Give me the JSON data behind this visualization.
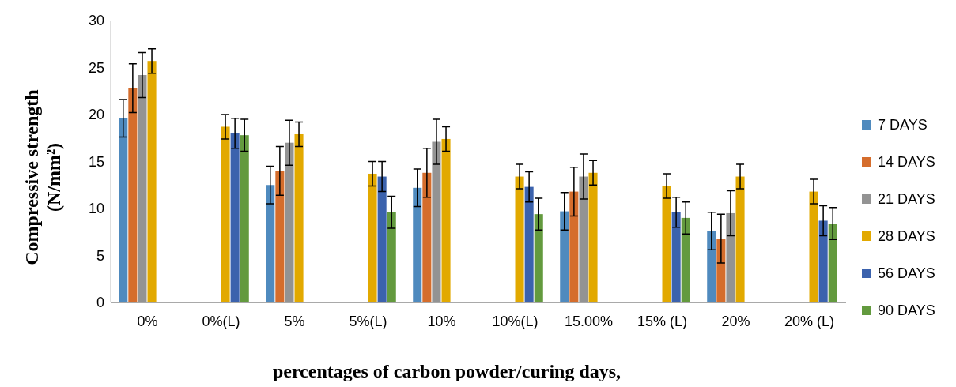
{
  "chart_data": {
    "type": "bar",
    "xlabel": "percentages of carbon powder/curing days,",
    "ylabel": "Compressive strength (N/mm²)",
    "categories": [
      "0%",
      "0%(L)",
      "5%",
      "5%(L)",
      "10%",
      "10%(L)",
      "15.00%",
      "15% (L)",
      "20%",
      "20% (L)"
    ],
    "ylim": [
      0,
      30
    ],
    "yticks": [
      0,
      5,
      10,
      15,
      20,
      25,
      30
    ],
    "grid": false,
    "legend": "right",
    "series": [
      {
        "name": "7 DAYS",
        "color": "#4f8abe",
        "values": [
          19.6,
          null,
          12.5,
          null,
          12.2,
          null,
          9.7,
          null,
          7.6,
          null
        ],
        "errors": [
          2.0,
          null,
          2.0,
          null,
          2.0,
          null,
          2.0,
          null,
          2.0,
          null
        ]
      },
      {
        "name": "14 DAYS",
        "color": "#d56d2c",
        "values": [
          22.8,
          null,
          14.0,
          null,
          13.8,
          null,
          11.8,
          null,
          6.8,
          null
        ],
        "errors": [
          2.6,
          null,
          2.6,
          null,
          2.6,
          null,
          2.6,
          null,
          2.6,
          null
        ]
      },
      {
        "name": "21 DAYS",
        "color": "#939393",
        "values": [
          24.2,
          null,
          17.0,
          null,
          17.1,
          null,
          13.4,
          null,
          9.5,
          null
        ],
        "errors": [
          2.4,
          null,
          2.4,
          null,
          2.4,
          null,
          2.4,
          null,
          2.4,
          null
        ]
      },
      {
        "name": "28 DAYS",
        "color": "#e2a900",
        "values": [
          25.7,
          18.7,
          17.9,
          13.7,
          17.4,
          13.4,
          13.8,
          12.4,
          13.4,
          11.8
        ],
        "errors": [
          1.3,
          1.3,
          1.3,
          1.3,
          1.3,
          1.3,
          1.3,
          1.3,
          1.3,
          1.3
        ]
      },
      {
        "name": "56 DAYS",
        "color": "#3b62ad",
        "values": [
          null,
          18.0,
          null,
          13.4,
          null,
          12.3,
          null,
          9.6,
          null,
          8.7
        ],
        "errors": [
          null,
          1.6,
          null,
          1.6,
          null,
          1.6,
          null,
          1.6,
          null,
          1.6
        ]
      },
      {
        "name": "90 DAYS",
        "color": "#639a3e",
        "values": [
          null,
          17.8,
          null,
          9.6,
          null,
          9.4,
          null,
          9.0,
          null,
          8.4
        ],
        "errors": [
          null,
          1.7,
          null,
          1.7,
          null,
          1.7,
          null,
          1.7,
          null,
          1.7
        ]
      }
    ]
  }
}
